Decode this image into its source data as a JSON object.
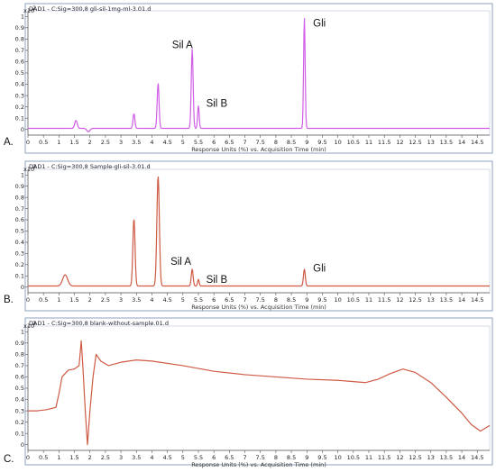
{
  "chart_data": [
    {
      "type": "line",
      "panel_label": "A.",
      "header": "DAD1 - C:Sig=300,8 gli-sil-1mg-ml-3.01.d",
      "y_multiplier": "x10",
      "y_exponent": "2",
      "xlabel": "Response Units (%) vs. Acquisition Time (min)",
      "xlim": [
        0,
        14.9
      ],
      "ylim": [
        -0.05,
        1.05
      ],
      "x_ticks": [
        0,
        0.5,
        1,
        1.5,
        2,
        2.5,
        3,
        3.5,
        4,
        4.5,
        5,
        5.5,
        6,
        6.5,
        7,
        7.5,
        8,
        8.5,
        9,
        9.5,
        10,
        10.5,
        11,
        11.5,
        12,
        12.5,
        13,
        13.5,
        14,
        14.5
      ],
      "y_ticks": [
        0,
        0.1,
        0.2,
        0.3,
        0.4,
        0.5,
        0.6,
        0.7,
        0.8,
        0.9,
        1
      ],
      "color": "#d15ee6",
      "baseline": 0.01,
      "peaks": [
        {
          "x": 1.55,
          "h": 0.07,
          "w": 0.04
        },
        {
          "x": 3.42,
          "h": 0.13,
          "w": 0.03
        },
        {
          "x": 4.2,
          "h": 0.4,
          "w": 0.03
        },
        {
          "x": 5.3,
          "h": 0.7,
          "w": 0.03
        },
        {
          "x": 5.5,
          "h": 0.2,
          "w": 0.025
        },
        {
          "x": 8.92,
          "h": 0.98,
          "w": 0.025
        }
      ],
      "dips": [
        {
          "x": 1.95,
          "h": 0.03,
          "w": 0.05
        }
      ],
      "annotations": [
        {
          "text": "Sil A",
          "x": 4.65,
          "y": 0.72
        },
        {
          "text": "Sil B",
          "x": 5.75,
          "y": 0.2
        },
        {
          "text": "Gli",
          "x": 9.2,
          "y": 0.91
        }
      ]
    },
    {
      "type": "line",
      "panel_label": "B.",
      "header": "DAD1 - C:Sig=300,8 Sample-gli-sil-3.01.d",
      "y_multiplier": "x10",
      "y_exponent": "2",
      "xlabel": "Response Units (%) vs. Acquisition Time (min)",
      "xlim": [
        0,
        14.9
      ],
      "ylim": [
        -0.05,
        1.05
      ],
      "x_ticks": [
        0,
        0.5,
        1,
        1.5,
        2,
        2.5,
        3,
        3.5,
        4,
        4.5,
        5,
        5.5,
        6,
        6.5,
        7,
        7.5,
        8,
        8.5,
        9,
        9.5,
        10,
        10.5,
        11,
        11.5,
        12,
        12.5,
        13,
        13.5,
        14,
        14.5
      ],
      "y_ticks": [
        0,
        0.1,
        0.2,
        0.3,
        0.4,
        0.5,
        0.6,
        0.7,
        0.8,
        0.9,
        1
      ],
      "color": "#cf5a45",
      "baseline": 0.01,
      "peaks": [
        {
          "x": 1.2,
          "h": 0.1,
          "w": 0.08
        },
        {
          "x": 3.42,
          "h": 0.6,
          "w": 0.035
        },
        {
          "x": 4.2,
          "h": 0.98,
          "w": 0.04
        },
        {
          "x": 5.3,
          "h": 0.15,
          "w": 0.03
        },
        {
          "x": 5.5,
          "h": 0.06,
          "w": 0.025
        },
        {
          "x": 8.92,
          "h": 0.15,
          "w": 0.03
        }
      ],
      "dips": [],
      "annotations": [
        {
          "text": "Sil A",
          "x": 4.6,
          "y": 0.2
        },
        {
          "text": "Sil B",
          "x": 5.75,
          "y": 0.04
        },
        {
          "text": "Gli",
          "x": 9.2,
          "y": 0.14
        }
      ]
    },
    {
      "type": "line",
      "panel_label": "C.",
      "header": "DAD1 - C:Sig=300,8 blank-without-sample.01.d",
      "y_multiplier": "x10",
      "y_exponent": "2",
      "xlabel": "Response Units (%) vs. Acquisition Time (min)",
      "xlim": [
        0,
        14.9
      ],
      "ylim": [
        -0.05,
        1.05
      ],
      "x_ticks": [
        0,
        0.5,
        1,
        1.5,
        2,
        2.5,
        3,
        3.5,
        4,
        4.5,
        5,
        5.5,
        6,
        6.5,
        7,
        7.5,
        8,
        8.5,
        9,
        9.5,
        10,
        10.5,
        11,
        11.5,
        12,
        12.5,
        13,
        13.5,
        14,
        14.5
      ],
      "y_ticks": [
        0,
        0.1,
        0.2,
        0.3,
        0.4,
        0.5,
        0.6,
        0.7,
        0.8,
        0.9,
        1
      ],
      "color": "#cf5a45",
      "points": [
        [
          0,
          0.3
        ],
        [
          0.3,
          0.3
        ],
        [
          0.6,
          0.31
        ],
        [
          0.9,
          0.33
        ],
        [
          1.0,
          0.45
        ],
        [
          1.1,
          0.6
        ],
        [
          1.3,
          0.66
        ],
        [
          1.5,
          0.67
        ],
        [
          1.65,
          0.7
        ],
        [
          1.72,
          0.92
        ],
        [
          1.77,
          0.7
        ],
        [
          1.85,
          0.3
        ],
        [
          1.92,
          0.0
        ],
        [
          2.0,
          0.3
        ],
        [
          2.1,
          0.6
        ],
        [
          2.2,
          0.8
        ],
        [
          2.35,
          0.74
        ],
        [
          2.6,
          0.7
        ],
        [
          3.0,
          0.73
        ],
        [
          3.5,
          0.75
        ],
        [
          4.0,
          0.74
        ],
        [
          5.0,
          0.7
        ],
        [
          6.0,
          0.65
        ],
        [
          7.0,
          0.62
        ],
        [
          8.0,
          0.6
        ],
        [
          9.0,
          0.58
        ],
        [
          10.0,
          0.57
        ],
        [
          10.9,
          0.55
        ],
        [
          11.3,
          0.58
        ],
        [
          11.7,
          0.63
        ],
        [
          12.1,
          0.67
        ],
        [
          12.5,
          0.64
        ],
        [
          13.0,
          0.55
        ],
        [
          13.5,
          0.42
        ],
        [
          14.0,
          0.28
        ],
        [
          14.3,
          0.18
        ],
        [
          14.6,
          0.12
        ],
        [
          14.9,
          0.17
        ]
      ]
    }
  ]
}
